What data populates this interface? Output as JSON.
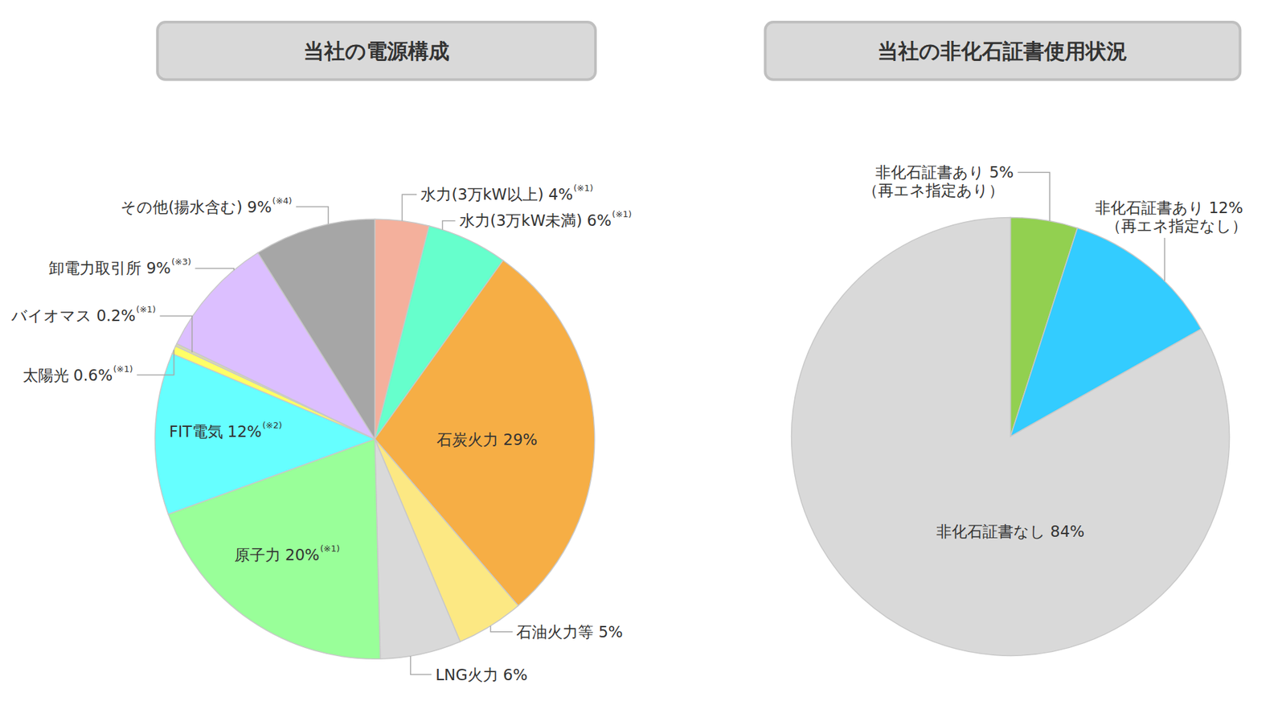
{
  "chart_data": [
    {
      "type": "pie",
      "title": "当社の電源構成",
      "categories": [
        "水力(3万kW以上)",
        "水力(3万kW未満)",
        "石炭火力",
        "石油火力等",
        "LNG火力",
        "原子力",
        "FIT電気",
        "太陽光",
        "バイオマス",
        "卸電力取引所",
        "その他(揚水含む)"
      ],
      "values": [
        4,
        6,
        29,
        5,
        6,
        20,
        12,
        0.6,
        0.2,
        9,
        9
      ],
      "value_labels": [
        "4%",
        "6%",
        "29%",
        "5%",
        "6%",
        "20%",
        "12%",
        "0.6%",
        "0.2%",
        "9%",
        "9%"
      ],
      "notes": [
        "(※1)",
        "(※1)",
        null,
        null,
        null,
        "(※1)",
        "(※2)",
        "(※1)",
        "(※1)",
        "(※3)",
        "(※4)"
      ],
      "colors": [
        "#f4b09c",
        "#66ffcc",
        "#f6ae45",
        "#fce883",
        "#d9d9d9",
        "#99ff99",
        "#66ffff",
        "#ffff66",
        "#d8d8b0",
        "#dcbfff",
        "#a6a6a6"
      ],
      "data_labels": true
    },
    {
      "type": "pie",
      "title": "当社の非化石証書使用状況",
      "categories": [
        "非化石証書あり",
        "非化石証書あり",
        "非化石証書なし"
      ],
      "values": [
        5,
        12,
        84
      ],
      "value_labels": [
        "5%",
        "12%",
        "84%"
      ],
      "sublabels": [
        "（再エネ指定あり）",
        "（再エネ指定なし）",
        null
      ],
      "colors": [
        "#92d050",
        "#33ccff",
        "#d9d9d9"
      ],
      "data_labels": true
    }
  ]
}
